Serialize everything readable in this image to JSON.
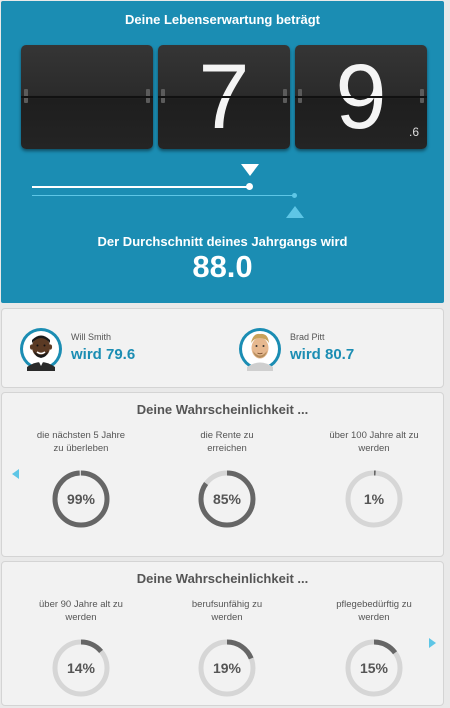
{
  "hero": {
    "title": "Deine Lebenserwartung beträgt",
    "digits": [
      "",
      "7",
      "9"
    ],
    "decimal": ".6",
    "average_label": "Der Durchschnitt deines Jahrgangs wird",
    "average_value": "88.0"
  },
  "celebrities": [
    {
      "name": "Will Smith",
      "value": "wird 79.6",
      "avatar_icon": "will-smith-avatar-icon"
    },
    {
      "name": "Brad Pitt",
      "value": "wird 80.7",
      "avatar_icon": "brad-pitt-avatar-icon"
    }
  ],
  "probability_sections": [
    {
      "title": "Deine Wahrscheinlichkeit ...",
      "items": [
        {
          "label_lines": [
            "die nächsten 5 Jahre",
            "zu überleben"
          ],
          "percent_text": "99%",
          "value": 99
        },
        {
          "label_lines": [
            "die Rente zu",
            "erreichen"
          ],
          "percent_text": "85%",
          "value": 85
        },
        {
          "label_lines": [
            "über 100 Jahre alt zu",
            "werden"
          ],
          "percent_text": "1%",
          "value": 1
        }
      ]
    },
    {
      "title": "Deine Wahrscheinlichkeit ...",
      "items": [
        {
          "label_lines": [
            "über 90 Jahre alt zu",
            "werden"
          ],
          "percent_text": "14%",
          "value": 14
        },
        {
          "label_lines": [
            "berufsunfähig zu",
            "werden"
          ],
          "percent_text": "19%",
          "value": 19
        },
        {
          "label_lines": [
            "pflegebedürftig zu",
            "werden"
          ],
          "percent_text": "15%",
          "value": 15
        }
      ]
    }
  ],
  "colors": {
    "accent": "#1b8db3",
    "accent_light": "#5ec6e6",
    "ring_track": "#d6d6d6",
    "ring_fill": "#666666"
  }
}
